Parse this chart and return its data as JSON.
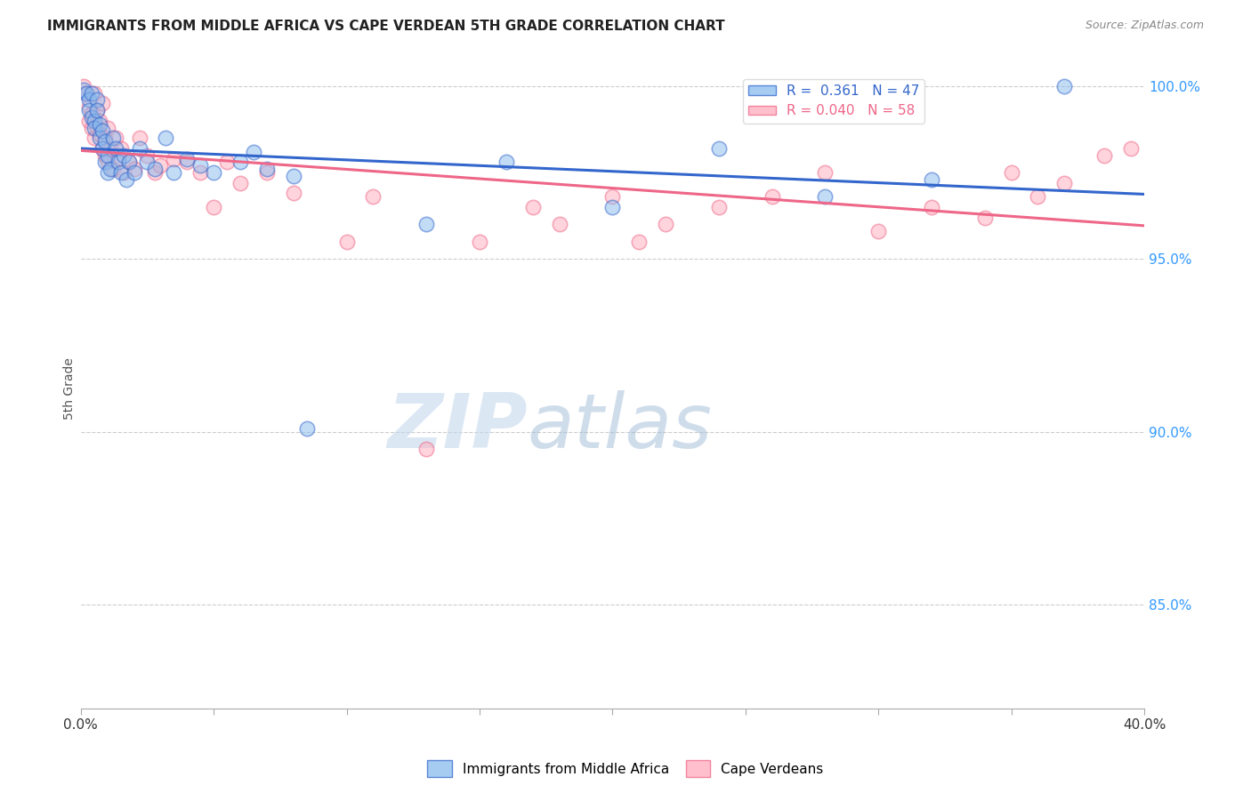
{
  "title": "IMMIGRANTS FROM MIDDLE AFRICA VS CAPE VERDEAN 5TH GRADE CORRELATION CHART",
  "source": "Source: ZipAtlas.com",
  "ylabel": "5th Grade",
  "right_yticks": [
    85.0,
    90.0,
    95.0,
    100.0
  ],
  "xmin": 0.0,
  "xmax": 0.4,
  "ymin": 0.82,
  "ymax": 1.005,
  "blue_R": 0.361,
  "blue_N": 47,
  "pink_R": 0.04,
  "pink_N": 58,
  "blue_label": "Immigrants from Middle Africa",
  "pink_label": "Cape Verdeans",
  "blue_color": "#88BBEE",
  "pink_color": "#FFAABB",
  "blue_line_color": "#3366CC",
  "pink_line_color": "#EE6688",
  "watermark_zip": "ZIP",
  "watermark_atlas": "atlas",
  "background_color": "#FFFFFF",
  "grid_color": "#CCCCCC",
  "blue_scatter_x": [
    0.001,
    0.002,
    0.003,
    0.003,
    0.004,
    0.004,
    0.005,
    0.005,
    0.006,
    0.006,
    0.007,
    0.007,
    0.008,
    0.008,
    0.009,
    0.009,
    0.01,
    0.01,
    0.011,
    0.012,
    0.013,
    0.014,
    0.015,
    0.016,
    0.017,
    0.018,
    0.02,
    0.022,
    0.025,
    0.028,
    0.032,
    0.035,
    0.04,
    0.045,
    0.05,
    0.06,
    0.065,
    0.07,
    0.08,
    0.085,
    0.13,
    0.16,
    0.2,
    0.24,
    0.28,
    0.32,
    0.37
  ],
  "blue_scatter_y": [
    0.999,
    0.998,
    0.996,
    0.993,
    0.991,
    0.998,
    0.99,
    0.988,
    0.996,
    0.993,
    0.989,
    0.985,
    0.987,
    0.982,
    0.984,
    0.978,
    0.975,
    0.98,
    0.976,
    0.985,
    0.982,
    0.978,
    0.975,
    0.98,
    0.973,
    0.978,
    0.975,
    0.982,
    0.978,
    0.976,
    0.985,
    0.975,
    0.979,
    0.977,
    0.975,
    0.978,
    0.981,
    0.976,
    0.974,
    0.901,
    0.96,
    0.978,
    0.965,
    0.982,
    0.968,
    0.973,
    1.0
  ],
  "pink_scatter_x": [
    0.001,
    0.002,
    0.003,
    0.003,
    0.004,
    0.004,
    0.005,
    0.005,
    0.006,
    0.006,
    0.007,
    0.007,
    0.008,
    0.008,
    0.009,
    0.009,
    0.01,
    0.01,
    0.011,
    0.012,
    0.013,
    0.014,
    0.015,
    0.016,
    0.018,
    0.02,
    0.022,
    0.025,
    0.028,
    0.03,
    0.035,
    0.04,
    0.045,
    0.05,
    0.055,
    0.06,
    0.07,
    0.08,
    0.1,
    0.11,
    0.13,
    0.15,
    0.17,
    0.18,
    0.2,
    0.21,
    0.22,
    0.24,
    0.26,
    0.28,
    0.3,
    0.32,
    0.34,
    0.35,
    0.36,
    0.37,
    0.385,
    0.395
  ],
  "pink_scatter_y": [
    1.0,
    0.998,
    0.994,
    0.99,
    0.992,
    0.988,
    0.985,
    0.998,
    0.993,
    0.988,
    0.99,
    0.986,
    0.982,
    0.995,
    0.985,
    0.98,
    0.978,
    0.988,
    0.982,
    0.976,
    0.985,
    0.979,
    0.982,
    0.975,
    0.978,
    0.976,
    0.985,
    0.98,
    0.975,
    0.977,
    0.979,
    0.978,
    0.975,
    0.965,
    0.978,
    0.972,
    0.975,
    0.969,
    0.955,
    0.968,
    0.895,
    0.955,
    0.965,
    0.96,
    0.968,
    0.955,
    0.96,
    0.965,
    0.968,
    0.975,
    0.958,
    0.965,
    0.962,
    0.975,
    0.968,
    0.972,
    0.98,
    0.982
  ]
}
